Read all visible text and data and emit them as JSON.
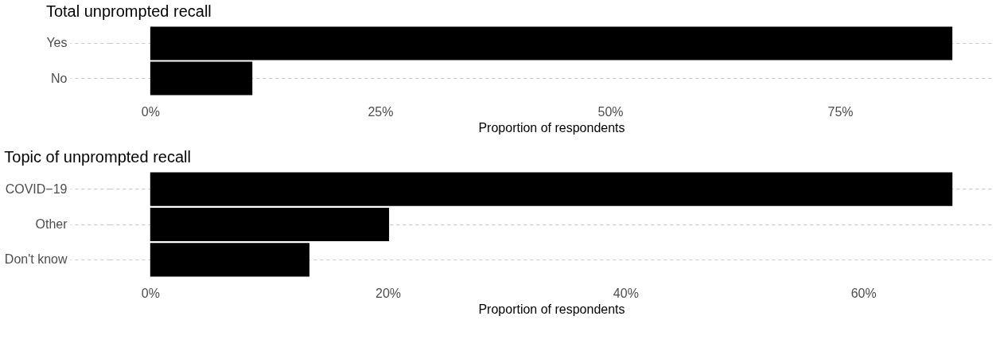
{
  "chart_data": [
    {
      "type": "bar",
      "orientation": "horizontal",
      "title": "Total unprompted recall",
      "xlabel": "Proportion of respondents",
      "categories": [
        "Yes",
        "No"
      ],
      "values": [
        87.2,
        11.1
      ],
      "color": "#000000",
      "xlim": [
        -4.4,
        91.6
      ],
      "xticks": [
        {
          "value": 0,
          "label": "0%"
        },
        {
          "value": 25,
          "label": "25%"
        },
        {
          "value": 50,
          "label": "50%"
        },
        {
          "value": 75,
          "label": "75%"
        }
      ],
      "grid": "y"
    },
    {
      "type": "bar",
      "orientation": "horizontal",
      "title": "Topic of unprompted recall",
      "xlabel": "Proportion of respondents",
      "categories": [
        "COVID−19",
        "Other",
        "Don't know"
      ],
      "values": [
        67.5,
        20.1,
        13.4
      ],
      "color": "#000000",
      "xlim": [
        -3.4,
        70.9
      ],
      "xticks": [
        {
          "value": 0,
          "label": "0%"
        },
        {
          "value": 20,
          "label": "20%"
        },
        {
          "value": 40,
          "label": "40%"
        },
        {
          "value": 60,
          "label": "60%"
        }
      ],
      "grid": "y"
    }
  ]
}
